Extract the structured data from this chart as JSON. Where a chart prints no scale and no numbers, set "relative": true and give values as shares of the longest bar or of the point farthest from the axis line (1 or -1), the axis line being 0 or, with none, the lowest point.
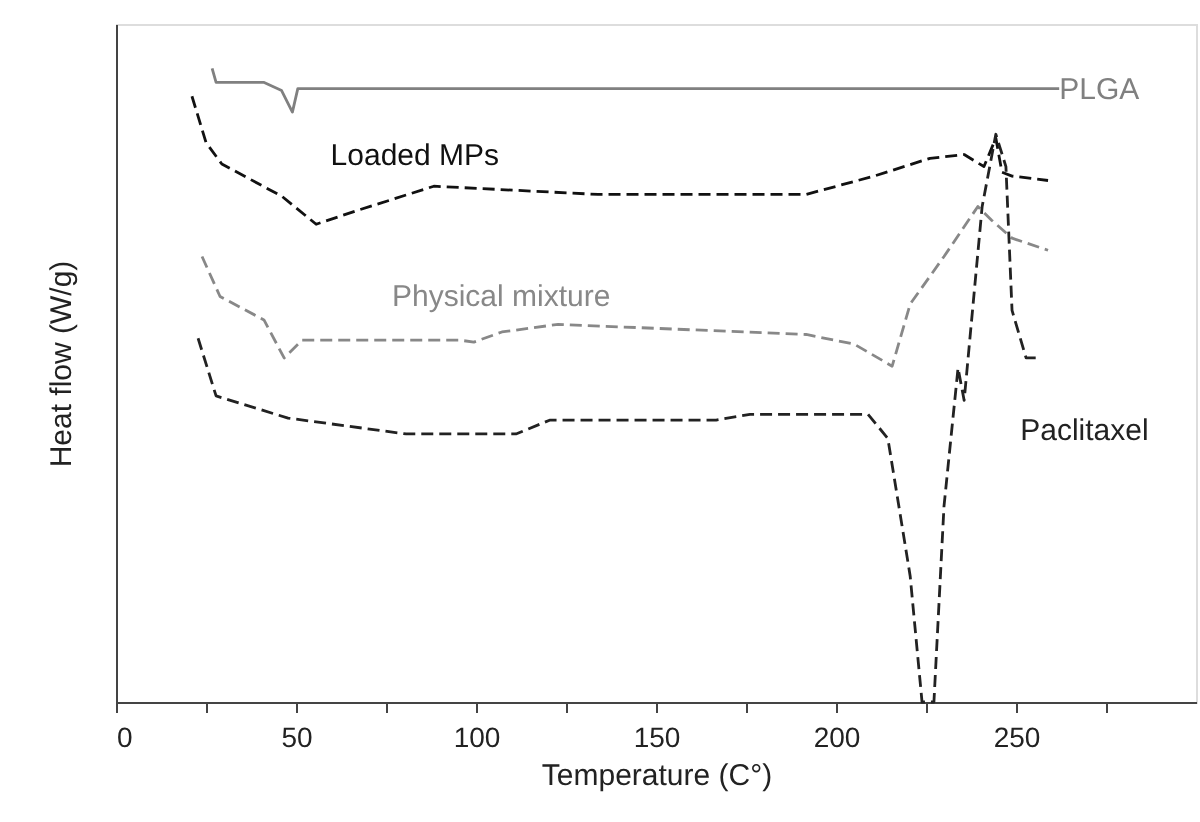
{
  "chart_data": {
    "type": "line",
    "xlabel": "Temperature (C°)",
    "ylabel": "Heat flow (W/g)",
    "relative": true,
    "xlim": [
      0,
      300
    ],
    "xticks": [
      0,
      {
        "value": 25,
        "label": null
      },
      50,
      {
        "value": 75,
        "label": null
      },
      100,
      {
        "value": 125,
        "label": null
      },
      150,
      {
        "value": 175,
        "label": null
      },
      200,
      {
        "value": 225,
        "label": null
      },
      250,
      {
        "value": 275,
        "label": null
      }
    ],
    "tick_labels": "x",
    "grid": false,
    "marker": "none",
    "series": [
      {
        "name": "PLGA",
        "color": "#808080",
        "line_style": "solid",
        "x": [
          26.7,
          27.8,
          41,
          46,
          49,
          50.5,
          262
        ],
        "values": [
          1.0,
          0.978,
          0.978,
          0.965,
          0.931,
          0.968,
          0.968
        ]
      },
      {
        "name": "Loaded MPs",
        "color": "#111111",
        "line_style": "dashed",
        "x": [
          21.1,
          25,
          29.4,
          46.1,
          55.6,
          67.2,
          88.3,
          133.9,
          191.7,
          210.6,
          226.1,
          235.6,
          241.1,
          244.4,
          246.1,
          248.9,
          258.9
        ],
        "values": [
          0.956,
          0.883,
          0.849,
          0.798,
          0.754,
          0.776,
          0.814,
          0.801,
          0.801,
          0.83,
          0.858,
          0.864,
          0.845,
          0.89,
          0.836,
          0.83,
          0.823
        ]
      },
      {
        "name": "Physical mixture",
        "color": "#888888",
        "line_style": "dashed",
        "x": [
          23.9,
          28.9,
          41.1,
          46.7,
          51.7,
          95.6,
          99.4,
          107.2,
          122.8,
          191.7,
          205,
          215.6,
          220.6,
          230,
          239.4,
          243.3,
          248.9,
          258.9
        ],
        "values": [
          0.703,
          0.64,
          0.603,
          0.543,
          0.571,
          0.571,
          0.568,
          0.584,
          0.596,
          0.58,
          0.565,
          0.53,
          0.628,
          0.703,
          0.782,
          0.76,
          0.732,
          0.713
        ]
      },
      {
        "name": "Paclitaxel",
        "color": "#222222",
        "line_style": "dashed",
        "x": [
          22.8,
          27.8,
          47.8,
          80.6,
          111.1,
          120.6,
          166.7,
          176.1,
          208.9,
          214.4,
          220.6,
          223.9,
          227.2,
          230,
          233.9,
          235.6,
          240.6,
          244.4,
          247.2,
          248.9,
          252.8,
          256.7
        ],
        "values": [
          0.574,
          0.483,
          0.448,
          0.423,
          0.423,
          0.445,
          0.445,
          0.454,
          0.454,
          0.416,
          0.199,
          0.0,
          0.0,
          0.309,
          0.527,
          0.476,
          0.782,
          0.896,
          0.845,
          0.618,
          0.543,
          0.543
        ]
      }
    ]
  }
}
